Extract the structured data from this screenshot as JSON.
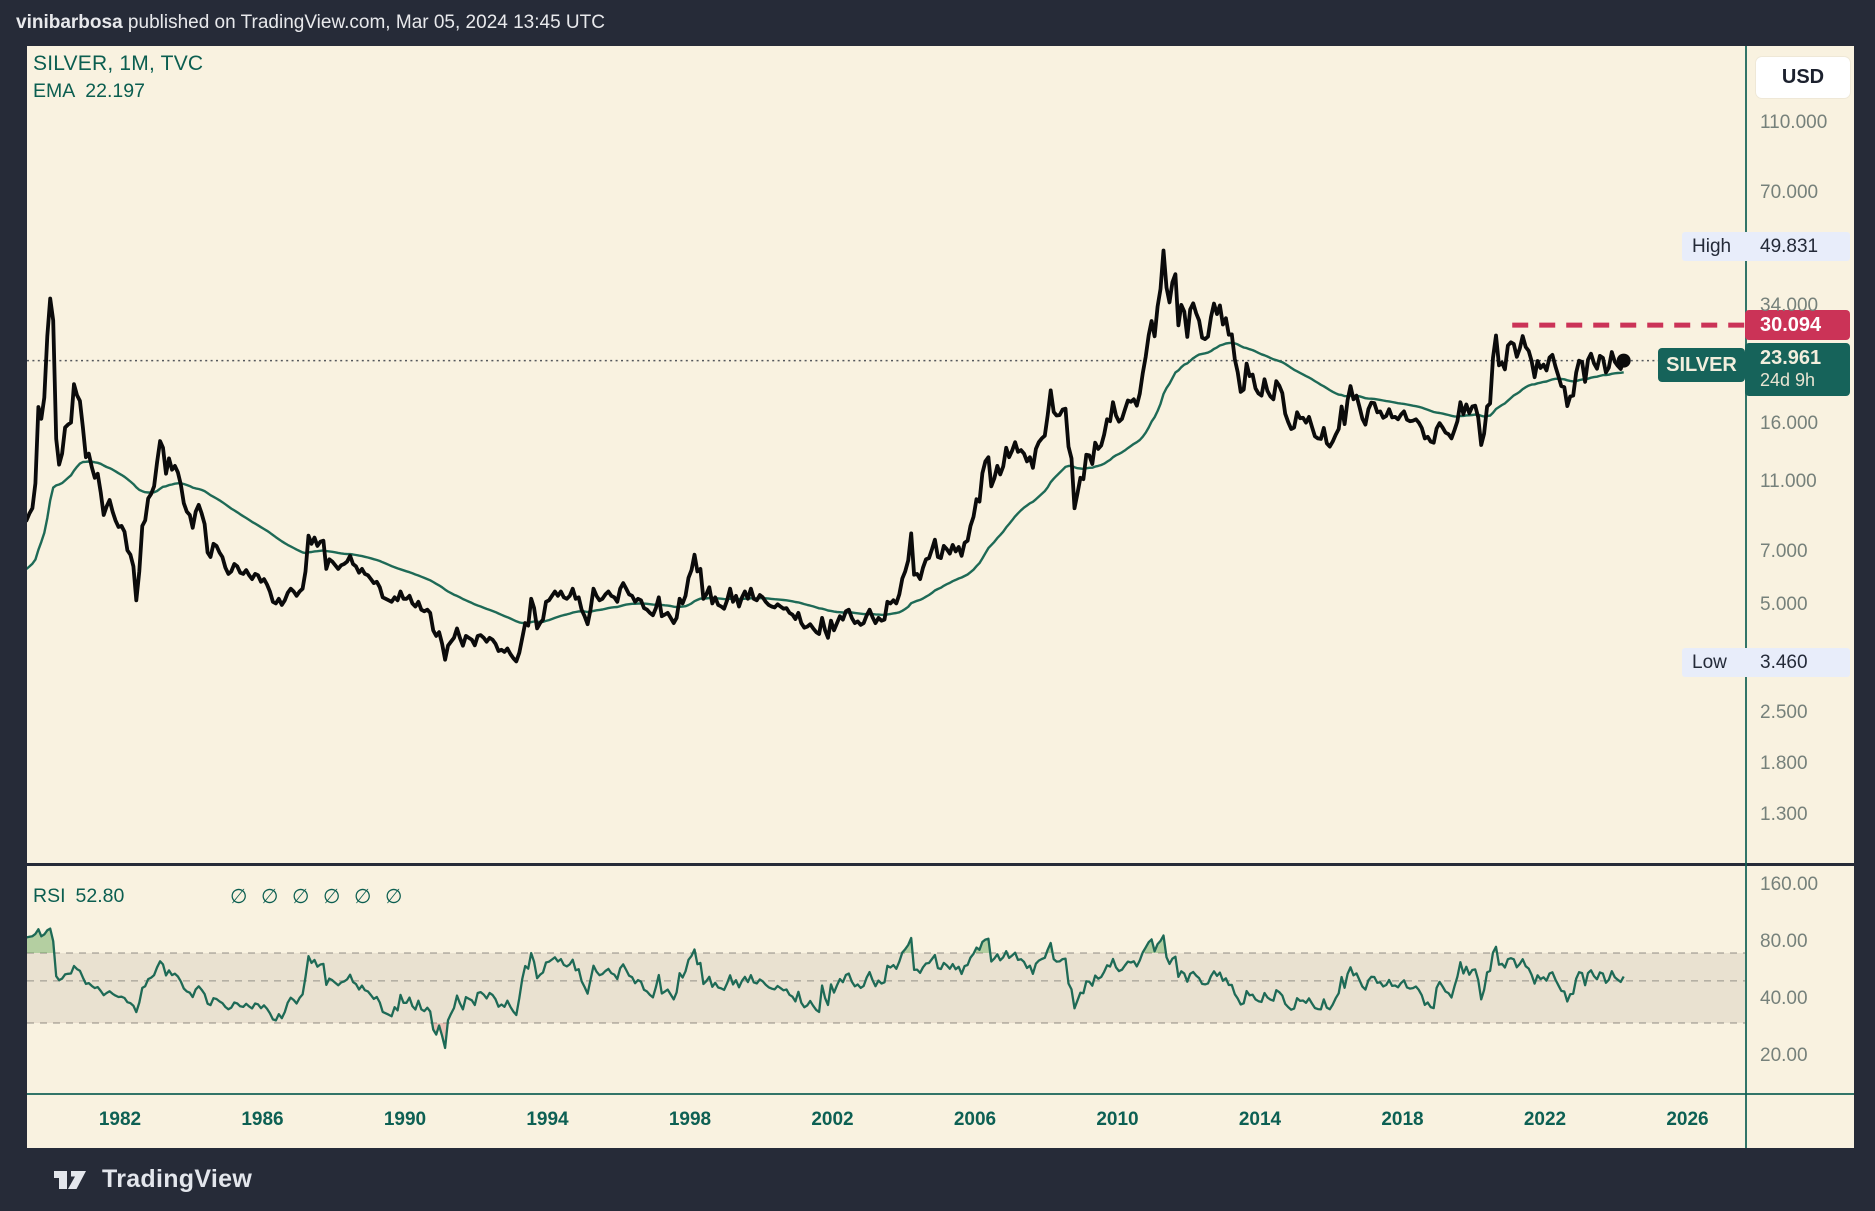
{
  "attribution": {
    "author": "vinibarbosa",
    "rest": " published on TradingView.com, Mar 05, 2024 13:45 UTC"
  },
  "header": {
    "symbol_line": "SILVER, 1M, TVC",
    "ema_label": "EMA",
    "ema_value": "22.197"
  },
  "price_scale": {
    "currency_button": "USD",
    "ticks": [
      {
        "v": 110,
        "label": "110.000"
      },
      {
        "v": 70,
        "label": "70.000"
      },
      {
        "v": 34,
        "label": "34.000"
      },
      {
        "v": 16,
        "label": "16.000"
      },
      {
        "v": 11,
        "label": "11.000"
      },
      {
        "v": 7,
        "label": "7.000"
      },
      {
        "v": 5,
        "label": "5.000"
      },
      {
        "v": 2.5,
        "label": "2.500"
      },
      {
        "v": 1.8,
        "label": "1.800"
      },
      {
        "v": 1.3,
        "label": "1.300"
      }
    ],
    "high_marker": {
      "label": "High",
      "value": 49.831,
      "display": "49.831"
    },
    "low_marker": {
      "label": "Low",
      "value": 3.46,
      "display": "3.460"
    },
    "level_marker": {
      "value": 30.094,
      "display": "30.094",
      "from_year": 2021.08
    },
    "last_price": {
      "symbol": "SILVER",
      "value": 23.961,
      "display": "23.961",
      "countdown": "24d 9h"
    }
  },
  "time_scale": {
    "ticks": [
      1982,
      1986,
      1990,
      1994,
      1998,
      2002,
      2006,
      2010,
      2014,
      2018,
      2022,
      2026
    ]
  },
  "rsi_pane": {
    "label": "RSI",
    "value_display": "52.80",
    "hidden_args": [
      "∅",
      "∅",
      "∅",
      "∅",
      "∅",
      "∅"
    ],
    "ticks": [
      {
        "v": 160,
        "label": "160.00"
      },
      {
        "v": 80,
        "label": "80.00"
      },
      {
        "v": 40,
        "label": "40.00"
      },
      {
        "v": 20,
        "label": "20.00"
      }
    ],
    "band": {
      "upper": 70,
      "middle": 50,
      "lower": 30
    }
  },
  "footer": {
    "brand": "TradingView"
  },
  "colors": {
    "frame": "#262b38",
    "cream": "#f9f2e0",
    "teal_text": "#0b5e50",
    "tick_text": "#76817b",
    "price_line": "#0b0b0b",
    "ema_line": "#1e6a56",
    "rsi_line": "#1e6a56",
    "red": "#cb3357",
    "tag_green": "#16635a",
    "chip_bg": "#e8edfa",
    "chip_text": "#242a38",
    "band_fill": "rgba(128,118,100,0.13)",
    "band_line": "#b5b0a4",
    "overbought_fill": "rgba(96,164,84,0.45)",
    "oversold_fill": "rgba(200,80,80,0.28)",
    "dotted_line": "#44484f"
  },
  "chart_data": {
    "type": "line",
    "title": "SILVER, 1M, TVC",
    "scale": "log",
    "x_axis_years": [
      1982,
      2026
    ],
    "y_axis_range_main": [
      1.1,
      130
    ],
    "legend_position": "top-left",
    "grid": false,
    "annotations": {
      "high": 49.831,
      "low": 3.46,
      "horizontal_ray": {
        "price": 30.094,
        "from_year": 2021.08
      },
      "last_close": 23.961,
      "ema_last": 22.197,
      "rsi_last": 52.8
    },
    "series": [
      {
        "name": "SILVER monthly close (USD)",
        "interval": "1M",
        "start_year": 1979,
        "start_month": 5,
        "values": [
          8.6,
          9.0,
          9.3,
          10.9,
          17.8,
          16.5,
          18.9,
          28.0,
          35.7,
          31.0,
          14.5,
          12.3,
          13.2,
          15.6,
          15.9,
          16.1,
          20.6,
          19.2,
          18.5,
          15.6,
          12.9,
          13.2,
          12.1,
          11.3,
          11.6,
          10.3,
          8.9,
          9.4,
          9.8,
          9.1,
          8.6,
          8.25,
          8.3,
          8.0,
          7.1,
          6.9,
          6.4,
          5.15,
          6.2,
          8.3,
          8.6,
          9.9,
          10.2,
          10.7,
          12.5,
          14.3,
          13.7,
          11.6,
          12.8,
          11.9,
          12.2,
          11.7,
          10.8,
          9.6,
          9.1,
          8.9,
          8.2,
          9.1,
          9.5,
          9.0,
          8.4,
          7.0,
          6.8,
          7.4,
          7.3,
          7.0,
          6.8,
          6.35,
          6.1,
          6.2,
          6.5,
          6.4,
          6.15,
          6.1,
          6.25,
          6.05,
          5.9,
          6.1,
          6.05,
          5.8,
          5.9,
          5.7,
          5.45,
          5.1,
          5.05,
          5.2,
          5.0,
          5.15,
          5.4,
          5.55,
          5.45,
          5.3,
          5.45,
          5.55,
          6.2,
          7.8,
          7.4,
          7.7,
          7.3,
          7.5,
          7.55,
          6.3,
          6.7,
          6.6,
          6.45,
          6.3,
          6.45,
          6.5,
          6.6,
          6.85,
          6.5,
          6.4,
          6.15,
          6.3,
          6.1,
          6.05,
          5.9,
          5.75,
          5.8,
          5.6,
          5.25,
          5.2,
          5.15,
          5.1,
          5.25,
          5.15,
          5.45,
          5.2,
          5.2,
          5.3,
          5.05,
          4.95,
          5.1,
          4.85,
          4.8,
          4.85,
          4.75,
          4.25,
          4.1,
          4.2,
          3.9,
          3.52,
          3.85,
          3.95,
          4.05,
          4.3,
          4.05,
          3.85,
          4.1,
          4.05,
          4.0,
          3.86,
          4.1,
          4.12,
          4.05,
          3.95,
          4.05,
          4.0,
          3.9,
          3.72,
          3.75,
          3.7,
          3.78,
          3.65,
          3.55,
          3.48,
          3.68,
          4.05,
          4.45,
          4.38,
          5.2,
          4.9,
          4.3,
          4.45,
          4.55,
          5.1,
          5.15,
          5.3,
          5.45,
          5.3,
          5.45,
          5.25,
          5.2,
          5.3,
          5.55,
          5.2,
          5.25,
          4.85,
          4.65,
          4.42,
          4.85,
          5.55,
          5.3,
          5.15,
          5.2,
          5.35,
          5.45,
          5.3,
          5.25,
          5.1,
          5.55,
          5.75,
          5.55,
          5.35,
          5.3,
          5.1,
          5.2,
          5.15,
          4.9,
          4.85,
          4.75,
          4.68,
          4.9,
          5.25,
          4.65,
          4.7,
          4.75,
          4.6,
          4.45,
          4.6,
          5.2,
          5.05,
          5.3,
          5.95,
          6.25,
          6.9,
          6.2,
          6.3,
          5.2,
          5.35,
          5.6,
          5.05,
          5.25,
          5.0,
          4.95,
          4.88,
          5.15,
          5.55,
          5.1,
          5.3,
          4.95,
          5.25,
          5.45,
          5.2,
          5.55,
          5.2,
          5.15,
          5.33,
          5.25,
          5.1,
          5.0,
          4.95,
          4.92,
          5.02,
          4.95,
          4.88,
          4.9,
          4.75,
          4.7,
          4.57,
          4.75,
          4.45,
          4.32,
          4.35,
          4.42,
          4.3,
          4.2,
          4.15,
          4.6,
          4.25,
          4.05,
          4.52,
          4.25,
          4.45,
          4.65,
          4.55,
          4.8,
          4.85,
          4.6,
          4.45,
          4.5,
          4.4,
          4.45,
          4.67,
          4.85,
          4.62,
          4.45,
          4.6,
          4.52,
          4.55,
          5.1,
          5.05,
          5.15,
          5.05,
          5.35,
          5.92,
          6.2,
          6.65,
          7.91,
          6.07,
          6.1,
          5.9,
          6.35,
          6.7,
          6.75,
          7.15,
          7.6,
          6.8,
          6.75,
          7.3,
          7.15,
          6.95,
          7.35,
          7.05,
          7.25,
          6.85,
          7.45,
          7.55,
          8.3,
          8.8,
          9.85,
          9.7,
          11.65,
          12.55,
          12.9,
          10.7,
          11.25,
          12.2,
          11.55,
          12.15,
          13.7,
          12.9,
          13.45,
          14.2,
          13.35,
          13.5,
          13.2,
          12.55,
          12.9,
          12.05,
          13.6,
          14.2,
          14.55,
          14.8,
          16.9,
          19.8,
          17.25,
          16.85,
          16.9,
          17.5,
          17.6,
          13.8,
          12.8,
          9.3,
          10.2,
          11.3,
          11.2,
          13.1,
          13.05,
          12.35,
          14.15,
          13.6,
          13.9,
          14.9,
          16.45,
          16.25,
          18.35,
          16.85,
          16.2,
          16.5,
          17.5,
          18.55,
          18.4,
          18.7,
          17.95,
          19.4,
          22.05,
          24.55,
          28.2,
          30.9,
          28.0,
          33.9,
          37.9,
          48.55,
          38.3,
          34.8,
          39.6,
          41.7,
          30.05,
          34.25,
          32.8,
          27.9,
          33.25,
          34.6,
          32.45,
          31.0,
          27.75,
          27.5,
          27.95,
          31.7,
          34.55,
          32.3,
          34.15,
          30.2,
          31.45,
          28.3,
          28.35,
          24.2,
          22.25,
          19.6,
          19.9,
          23.5,
          21.7,
          21.9,
          20.05,
          19.4,
          19.15,
          21.25,
          19.75,
          19.05,
          18.7,
          21.0,
          20.4,
          19.45,
          17.05,
          16.15,
          15.45,
          15.6,
          17.2,
          16.55,
          16.6,
          16.1,
          16.7,
          15.65,
          14.75,
          14.55,
          14.5,
          15.55,
          14.1,
          13.8,
          14.25,
          14.9,
          15.45,
          17.85,
          15.95,
          18.6,
          20.35,
          18.7,
          19.15,
          17.8,
          16.5,
          15.9,
          17.55,
          18.3,
          18.25,
          17.2,
          17.3,
          16.6,
          16.8,
          17.55,
          16.65,
          16.7,
          16.45,
          16.95,
          17.3,
          16.4,
          16.25,
          16.3,
          16.45,
          16.1,
          15.55,
          14.55,
          14.7,
          14.25,
          14.15,
          15.5,
          16.05,
          15.6,
          15.1,
          14.95,
          14.55,
          15.35,
          16.25,
          18.35,
          17.0,
          18.1,
          17.1,
          17.85,
          17.95,
          16.65,
          13.95,
          15.0,
          17.85,
          18.2,
          24.4,
          28.15,
          23.25,
          23.65,
          22.65,
          26.4,
          26.95,
          26.65,
          24.55,
          25.9,
          28.05,
          26.15,
          25.5,
          23.9,
          21.55,
          23.9,
          22.85,
          23.35,
          22.5,
          24.45,
          24.85,
          23.1,
          21.7,
          20.35,
          20.2,
          17.9,
          19.05,
          19.15,
          22.2,
          23.95,
          23.75,
          20.9,
          24.1,
          25.05,
          23.55,
          22.75,
          24.7,
          24.4,
          22.2,
          22.9,
          25.3,
          23.8,
          23.2,
          22.7,
          23.96
        ]
      },
      {
        "name": "EMA",
        "derived": "ema of close",
        "last_value": 22.197
      },
      {
        "name": "RSI",
        "derived": "rsi(14) of close",
        "last_value": 52.8
      }
    ]
  }
}
